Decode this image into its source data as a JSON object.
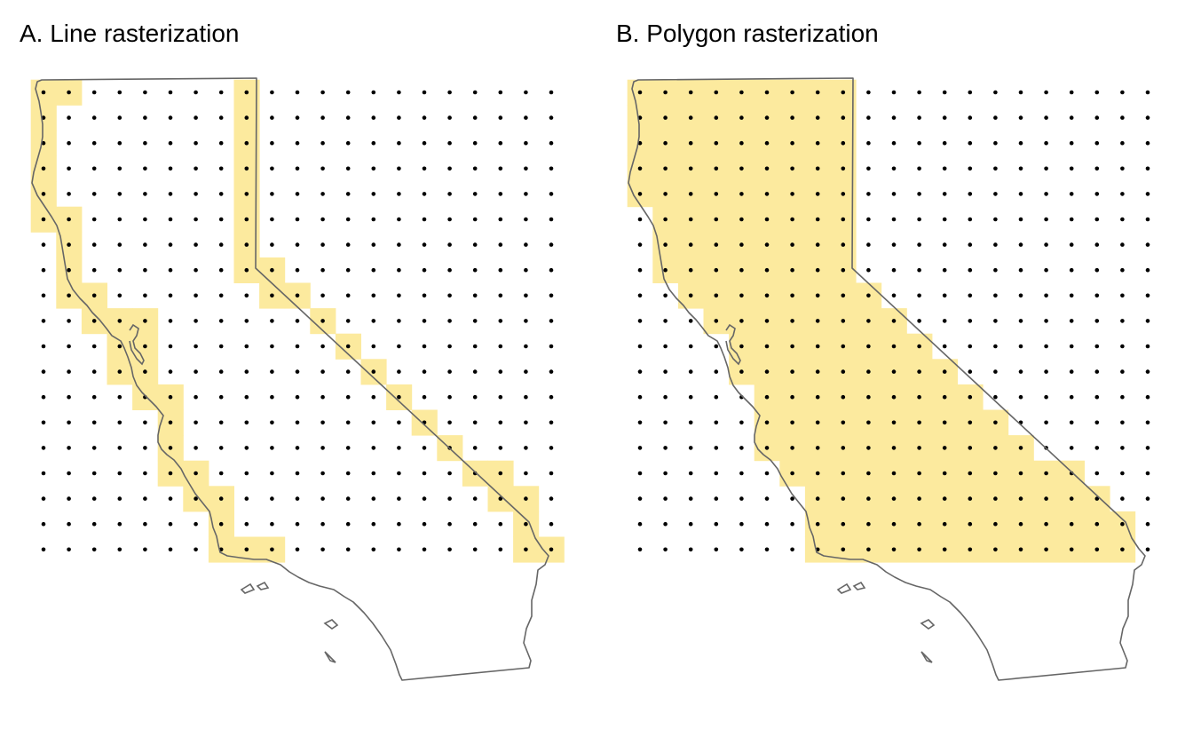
{
  "panels": [
    {
      "id": "a",
      "title": "A. Line rasterization",
      "mode": "line"
    },
    {
      "id": "b",
      "title": "B. Polygon rasterization",
      "mode": "polygon"
    }
  ],
  "grid": {
    "columns": 21,
    "rows": 19
  },
  "colors": {
    "cell_fill": "#fcea9e",
    "outline": "#666666",
    "dot": "#000000"
  },
  "state_outline": {
    "mainland": [
      [
        0.2,
        0.2
      ],
      [
        8.6,
        0.1
      ],
      [
        8.6,
        6.2
      ],
      [
        18.8,
        14.5
      ],
      [
        19.2,
        15.2
      ],
      [
        19.8,
        16.0
      ],
      [
        19.3,
        17.2
      ],
      [
        19.0,
        18.3
      ],
      [
        19.1,
        18.8
      ],
      [
        14.0,
        19.2
      ],
      [
        9.6,
        19.5
      ],
      [
        9.5,
        18.8
      ],
      [
        8.9,
        17.6
      ],
      [
        8.1,
        17.0
      ],
      [
        7.2,
        16.6
      ],
      [
        6.6,
        16.2
      ],
      [
        6.2,
        15.8
      ],
      [
        5.3,
        15.6
      ],
      [
        4.3,
        15.5
      ],
      [
        3.6,
        14.9
      ],
      [
        3.3,
        14.4
      ],
      [
        3.0,
        13.8
      ],
      [
        3.0,
        13.2
      ],
      [
        2.5,
        12.7
      ],
      [
        1.9,
        12.3
      ],
      [
        1.2,
        11.8
      ],
      [
        0.9,
        11.5
      ],
      [
        0.7,
        11.0
      ],
      [
        0.3,
        10.6
      ],
      [
        0.2,
        10.0
      ],
      [
        0.5,
        9.5
      ],
      [
        0.1,
        9.0
      ],
      [
        -0.3,
        8.3
      ],
      [
        -0.8,
        7.8
      ],
      [
        -1.6,
        7.3
      ],
      [
        -2.0,
        6.9
      ],
      [
        -2.5,
        6.6
      ],
      [
        -2.8,
        6.0
      ],
      [
        -3.0,
        5.3
      ],
      [
        -3.2,
        4.6
      ],
      [
        -3.3,
        3.9
      ],
      [
        -3.5,
        3.4
      ],
      [
        -3.9,
        3.1
      ],
      [
        -4.2,
        2.4
      ],
      [
        -4.4,
        1.8
      ],
      [
        -4.3,
        1.2
      ],
      [
        -4.6,
        0.7
      ],
      [
        -4.9,
        0.2
      ]
    ]
  }
}
